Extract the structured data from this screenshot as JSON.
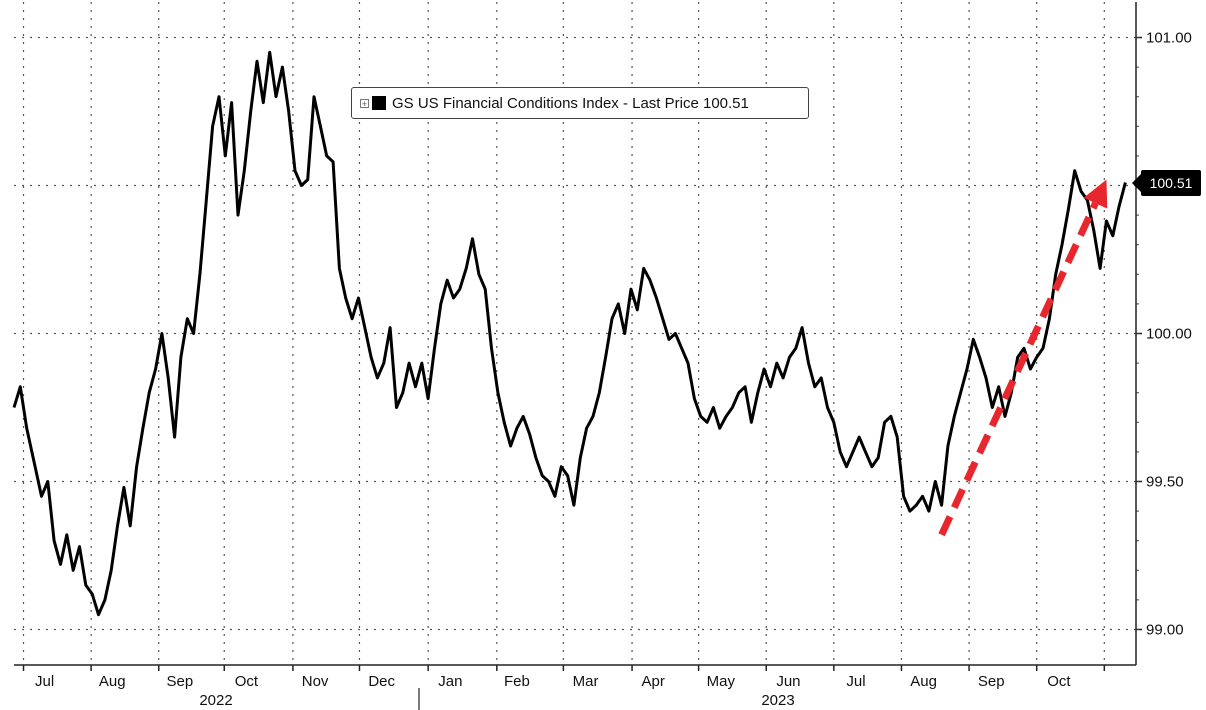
{
  "chart_data": {
    "type": "line",
    "title": "",
    "xlabel": "",
    "ylabel": "",
    "ylim": [
      98.88,
      101.12
    ],
    "yticks": [
      {
        "value": 99.0,
        "label": "99.00"
      },
      {
        "value": 99.5,
        "label": "99.50"
      },
      {
        "value": 100.0,
        "label": "100.00"
      },
      {
        "value": 100.5,
        "label": "100.50"
      },
      {
        "value": 101.0,
        "label": "101.00"
      }
    ],
    "month_labels": [
      "Jul",
      "Aug",
      "Sep",
      "Oct",
      "Nov",
      "Dec",
      "Jan",
      "Feb",
      "Mar",
      "Apr",
      "May",
      "Jun",
      "Jul",
      "Aug",
      "Sep",
      "Oct"
    ],
    "year_labels": [
      "2022",
      "2023"
    ],
    "grid": true,
    "legend": {
      "position": "top-center",
      "label": "GS US Financial Conditions Index - Last Price 100.51"
    },
    "last_value_tag": "100.51",
    "last_value": 100.51,
    "series": [
      {
        "color": "#000000",
        "points": [
          [
            0,
            99.75
          ],
          [
            0.3,
            99.82
          ],
          [
            0.6,
            99.68
          ],
          [
            1.0,
            99.55
          ],
          [
            1.3,
            99.45
          ],
          [
            1.6,
            99.5
          ],
          [
            1.9,
            99.3
          ],
          [
            2.2,
            99.22
          ],
          [
            2.5,
            99.32
          ],
          [
            2.8,
            99.2
          ],
          [
            3.1,
            99.28
          ],
          [
            3.4,
            99.15
          ],
          [
            3.7,
            99.12
          ],
          [
            4.0,
            99.05
          ],
          [
            4.3,
            99.1
          ],
          [
            4.6,
            99.2
          ],
          [
            4.9,
            99.35
          ],
          [
            5.2,
            99.48
          ],
          [
            5.5,
            99.35
          ],
          [
            5.8,
            99.55
          ],
          [
            6.1,
            99.68
          ],
          [
            6.4,
            99.8
          ],
          [
            6.7,
            99.88
          ],
          [
            7.0,
            100.0
          ],
          [
            7.3,
            99.85
          ],
          [
            7.6,
            99.65
          ],
          [
            7.9,
            99.92
          ],
          [
            8.2,
            100.05
          ],
          [
            8.5,
            100.0
          ],
          [
            8.8,
            100.2
          ],
          [
            9.1,
            100.45
          ],
          [
            9.4,
            100.7
          ],
          [
            9.7,
            100.8
          ],
          [
            10.0,
            100.6
          ],
          [
            10.3,
            100.78
          ],
          [
            10.6,
            100.4
          ],
          [
            10.9,
            100.55
          ],
          [
            11.2,
            100.75
          ],
          [
            11.5,
            100.92
          ],
          [
            11.8,
            100.78
          ],
          [
            12.1,
            100.95
          ],
          [
            12.4,
            100.8
          ],
          [
            12.7,
            100.9
          ],
          [
            13.0,
            100.75
          ],
          [
            13.3,
            100.55
          ],
          [
            13.6,
            100.5
          ],
          [
            13.9,
            100.52
          ],
          [
            14.2,
            100.8
          ],
          [
            14.5,
            100.7
          ],
          [
            14.8,
            100.6
          ],
          [
            15.1,
            100.58
          ],
          [
            15.4,
            100.22
          ],
          [
            15.7,
            100.12
          ],
          [
            16.0,
            100.05
          ],
          [
            16.3,
            100.12
          ],
          [
            16.6,
            100.02
          ],
          [
            16.9,
            99.92
          ],
          [
            17.2,
            99.85
          ],
          [
            17.5,
            99.9
          ],
          [
            17.8,
            100.02
          ],
          [
            18.1,
            99.75
          ],
          [
            18.4,
            99.8
          ],
          [
            18.7,
            99.9
          ],
          [
            19.0,
            99.82
          ],
          [
            19.3,
            99.9
          ],
          [
            19.6,
            99.78
          ],
          [
            19.9,
            99.95
          ],
          [
            20.2,
            100.1
          ],
          [
            20.5,
            100.18
          ],
          [
            20.8,
            100.12
          ],
          [
            21.1,
            100.15
          ],
          [
            21.4,
            100.22
          ],
          [
            21.7,
            100.32
          ],
          [
            22.0,
            100.2
          ],
          [
            22.3,
            100.15
          ],
          [
            22.6,
            99.95
          ],
          [
            22.9,
            99.8
          ],
          [
            23.2,
            99.7
          ],
          [
            23.5,
            99.62
          ],
          [
            23.8,
            99.68
          ],
          [
            24.1,
            99.72
          ],
          [
            24.4,
            99.66
          ],
          [
            24.7,
            99.58
          ],
          [
            25.0,
            99.52
          ],
          [
            25.3,
            99.5
          ],
          [
            25.6,
            99.45
          ],
          [
            25.9,
            99.55
          ],
          [
            26.2,
            99.52
          ],
          [
            26.5,
            99.42
          ],
          [
            26.8,
            99.58
          ],
          [
            27.1,
            99.68
          ],
          [
            27.4,
            99.72
          ],
          [
            27.7,
            99.8
          ],
          [
            28.0,
            99.92
          ],
          [
            28.3,
            100.05
          ],
          [
            28.6,
            100.1
          ],
          [
            28.9,
            100.0
          ],
          [
            29.2,
            100.15
          ],
          [
            29.5,
            100.08
          ],
          [
            29.8,
            100.22
          ],
          [
            30.1,
            100.18
          ],
          [
            30.4,
            100.12
          ],
          [
            30.7,
            100.05
          ],
          [
            31.0,
            99.98
          ],
          [
            31.3,
            100.0
          ],
          [
            31.6,
            99.95
          ],
          [
            31.9,
            99.9
          ],
          [
            32.2,
            99.78
          ],
          [
            32.5,
            99.72
          ],
          [
            32.8,
            99.7
          ],
          [
            33.1,
            99.75
          ],
          [
            33.4,
            99.68
          ],
          [
            33.7,
            99.72
          ],
          [
            34.0,
            99.75
          ],
          [
            34.3,
            99.8
          ],
          [
            34.6,
            99.82
          ],
          [
            34.9,
            99.7
          ],
          [
            35.2,
            99.8
          ],
          [
            35.5,
            99.88
          ],
          [
            35.8,
            99.82
          ],
          [
            36.1,
            99.9
          ],
          [
            36.4,
            99.85
          ],
          [
            36.7,
            99.92
          ],
          [
            37.0,
            99.95
          ],
          [
            37.3,
            100.02
          ],
          [
            37.6,
            99.9
          ],
          [
            37.9,
            99.82
          ],
          [
            38.2,
            99.85
          ],
          [
            38.5,
            99.75
          ],
          [
            38.8,
            99.7
          ],
          [
            39.1,
            99.6
          ],
          [
            39.4,
            99.55
          ],
          [
            39.7,
            99.6
          ],
          [
            40.0,
            99.65
          ],
          [
            40.3,
            99.6
          ],
          [
            40.6,
            99.55
          ],
          [
            40.9,
            99.58
          ],
          [
            41.2,
            99.7
          ],
          [
            41.5,
            99.72
          ],
          [
            41.8,
            99.65
          ],
          [
            42.1,
            99.45
          ],
          [
            42.4,
            99.4
          ],
          [
            42.7,
            99.42
          ],
          [
            43.0,
            99.45
          ],
          [
            43.3,
            99.4
          ],
          [
            43.6,
            99.5
          ],
          [
            43.9,
            99.42
          ],
          [
            44.2,
            99.62
          ],
          [
            44.5,
            99.72
          ],
          [
            44.8,
            99.8
          ],
          [
            45.1,
            99.88
          ],
          [
            45.4,
            99.98
          ],
          [
            45.7,
            99.92
          ],
          [
            46.0,
            99.85
          ],
          [
            46.3,
            99.75
          ],
          [
            46.6,
            99.82
          ],
          [
            46.9,
            99.72
          ],
          [
            47.2,
            99.8
          ],
          [
            47.5,
            99.92
          ],
          [
            47.8,
            99.95
          ],
          [
            48.1,
            99.88
          ],
          [
            48.4,
            99.92
          ],
          [
            48.7,
            99.95
          ],
          [
            49.0,
            100.05
          ],
          [
            49.3,
            100.2
          ],
          [
            49.6,
            100.3
          ],
          [
            49.9,
            100.42
          ],
          [
            50.2,
            100.55
          ],
          [
            50.5,
            100.48
          ],
          [
            50.8,
            100.45
          ],
          [
            51.1,
            100.35
          ],
          [
            51.4,
            100.22
          ],
          [
            51.7,
            100.38
          ],
          [
            52.0,
            100.33
          ],
          [
            52.3,
            100.43
          ],
          [
            52.6,
            100.51
          ]
        ]
      }
    ],
    "x_range": [
      0,
      53.1
    ],
    "month_positions": [
      0.45,
      3.65,
      6.85,
      9.95,
      13.2,
      16.35,
      19.6,
      22.85,
      26.0,
      29.25,
      32.4,
      35.6,
      38.8,
      42.0,
      45.2,
      48.4,
      51.6
    ],
    "month_label_positions": [
      1.45,
      4.65,
      7.85,
      11.0,
      14.25,
      17.4,
      20.65,
      23.8,
      27.05,
      30.25,
      33.45,
      36.65,
      39.85,
      43.05,
      46.25,
      49.45
    ],
    "annotation": {
      "type": "trend-arrow",
      "color": "#e8262e",
      "from": [
        43.9,
        99.32
      ],
      "to": [
        51.7,
        100.52
      ]
    }
  }
}
